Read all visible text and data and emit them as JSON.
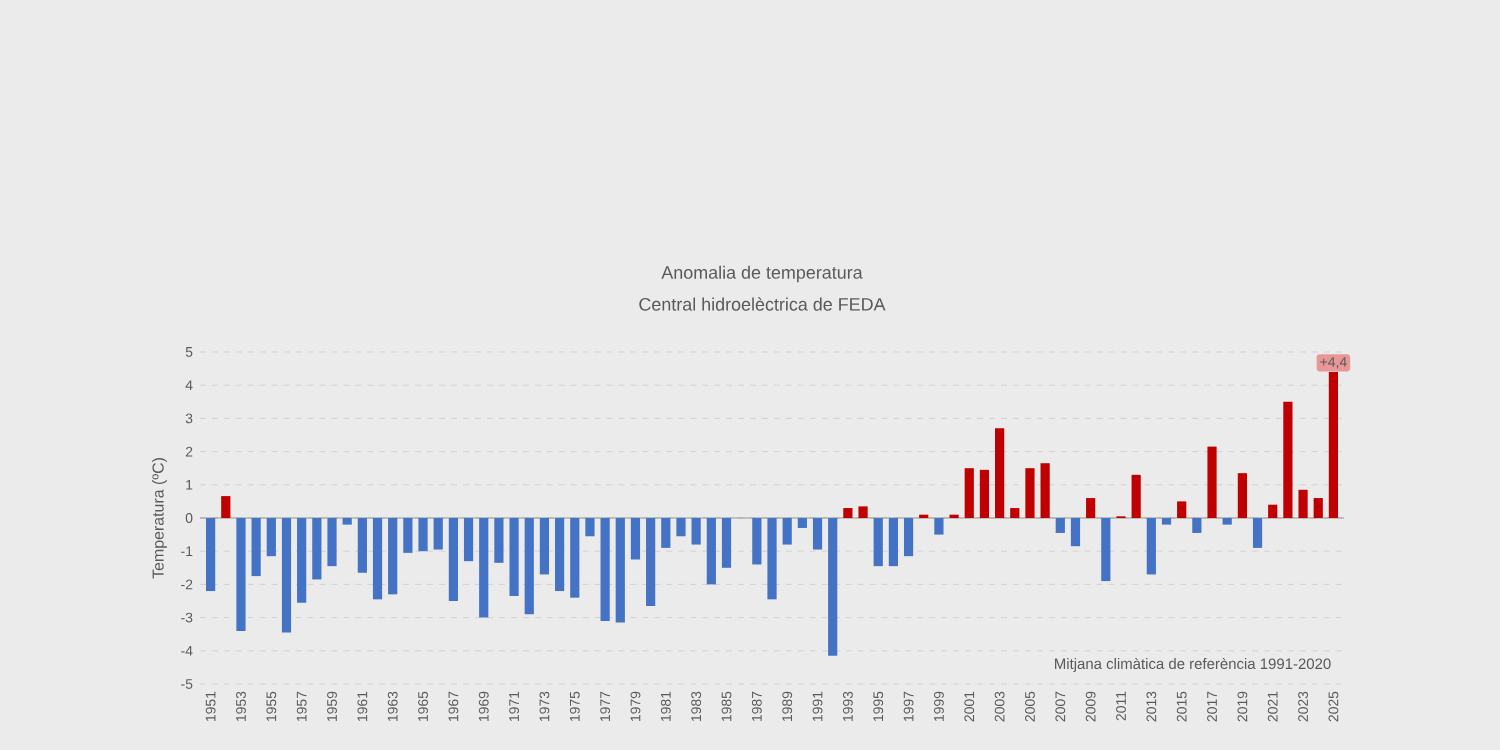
{
  "chart_data": {
    "type": "bar",
    "title": "Anomalia de temperatura",
    "subtitle": "Central hidroelèctrica de FEDA",
    "ylabel": "Temperatura (ºC)",
    "categories": [
      "1951",
      null,
      "1953",
      null,
      "1955",
      null,
      "1957",
      null,
      "1959",
      null,
      "1961",
      null,
      "1963",
      null,
      "1965",
      null,
      "1967",
      null,
      "1969",
      null,
      "1971",
      null,
      "1973",
      null,
      "1975",
      null,
      "1977",
      null,
      "1979",
      null,
      "1981",
      null,
      "1983",
      null,
      "1985",
      null,
      "1987",
      null,
      "1989",
      null,
      "1991",
      null,
      "1993",
      null,
      "1995",
      null,
      "1997",
      null,
      "1999",
      null,
      "2001",
      null,
      "2003",
      null,
      "2005",
      null,
      "2007",
      null,
      "2009",
      null,
      "2011",
      null,
      "2013",
      null,
      "2015",
      null,
      "2017",
      null,
      "2019",
      null,
      "2021",
      null,
      "2023",
      null,
      "2025"
    ],
    "values": [
      -2.2,
      0.66,
      -3.4,
      -1.75,
      -1.15,
      -3.45,
      -2.55,
      -1.85,
      -1.45,
      -0.2,
      -1.65,
      -2.45,
      -2.3,
      -1.05,
      -1.0,
      -0.95,
      -2.5,
      -1.3,
      -3.0,
      -1.35,
      -2.35,
      -2.9,
      -1.7,
      -2.2,
      -2.4,
      -0.55,
      -3.1,
      -3.15,
      -1.25,
      -2.65,
      -0.9,
      -0.55,
      -0.8,
      -2.0,
      -1.5,
      0,
      -1.4,
      -2.45,
      -0.8,
      -0.3,
      -0.95,
      -4.15,
      0.3,
      0.35,
      -1.45,
      -1.45,
      -1.15,
      0.1,
      -0.5,
      0.1,
      1.5,
      1.45,
      2.7,
      0.3,
      1.5,
      1.65,
      -0.45,
      -0.85,
      0.6,
      -1.9,
      0.05,
      1.3,
      -1.7,
      -0.2,
      0.5,
      -0.45,
      2.15,
      -0.2,
      1.35,
      -0.9,
      0.4,
      3.5,
      0.85,
      0.6,
      4.4
    ],
    "colors": [
      "#4472c4",
      "#c00000",
      "#4472c4",
      "#4472c4",
      "#4472c4",
      "#4472c4",
      "#4472c4",
      "#4472c4",
      "#4472c4",
      "#4472c4",
      "#4472c4",
      "#4472c4",
      "#4472c4",
      "#4472c4",
      "#4472c4",
      "#4472c4",
      "#4472c4",
      "#4472c4",
      "#4472c4",
      "#4472c4",
      "#4472c4",
      "#4472c4",
      "#4472c4",
      "#4472c4",
      "#4472c4",
      "#4472c4",
      "#4472c4",
      "#4472c4",
      "#4472c4",
      "#4472c4",
      "#4472c4",
      "#4472c4",
      "#4472c4",
      "#4472c4",
      "#4472c4",
      "#4472c4",
      "#4472c4",
      "#4472c4",
      "#4472c4",
      "#4472c4",
      "#4472c4",
      "#4472c4",
      "#c00000",
      "#c00000",
      "#4472c4",
      "#4472c4",
      "#4472c4",
      "#c00000",
      "#4472c4",
      "#c00000",
      "#c00000",
      "#c00000",
      "#c00000",
      "#c00000",
      "#c00000",
      "#c00000",
      "#4472c4",
      "#4472c4",
      "#c00000",
      "#4472c4",
      "#c00000",
      "#c00000",
      "#4472c4",
      "#4472c4",
      "#c00000",
      "#4472c4",
      "#c00000",
      "#4472c4",
      "#c00000",
      "#4472c4",
      "#c00000",
      "#c00000",
      "#c00000",
      "#c00000",
      "#c00000"
    ],
    "ylim": [
      -5,
      5
    ],
    "yticks": [
      -5,
      -4,
      -3,
      -2,
      -1,
      0,
      1,
      2,
      3,
      4,
      5
    ],
    "grid": "y",
    "annotations": [
      {
        "text": "+4,4",
        "x": "2025",
        "y": 4.4
      },
      "Mitjana climàtica de referència 1991-2020"
    ]
  }
}
